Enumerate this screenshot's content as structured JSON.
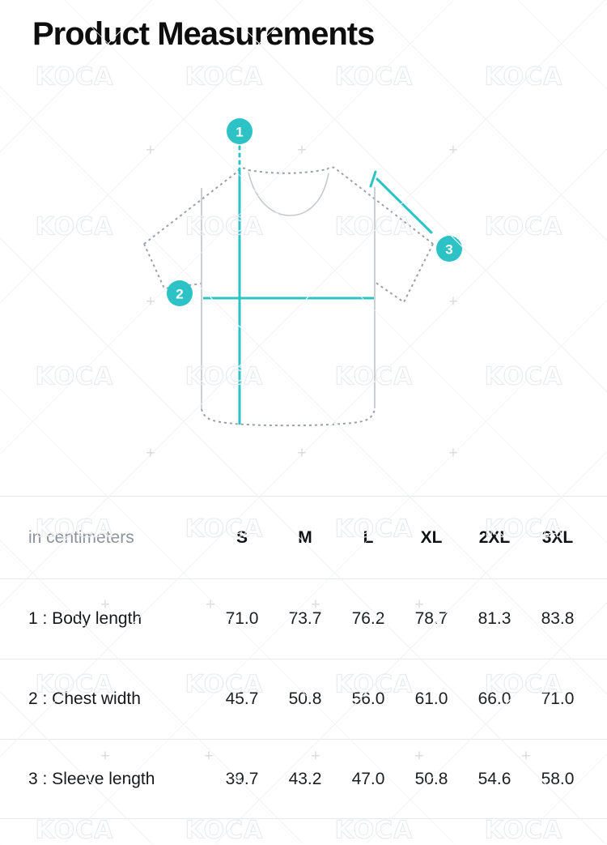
{
  "title": "Product Measurements",
  "watermark": {
    "text": "KOCA",
    "plus_glyph": "+"
  },
  "diagram": {
    "accent_color": "#2dc3c6",
    "outline_color": "#9aa0a7",
    "markers": [
      {
        "label": "1",
        "measures": "Body length"
      },
      {
        "label": "2",
        "measures": "Chest width"
      },
      {
        "label": "3",
        "measures": "Sleeve length"
      }
    ]
  },
  "table": {
    "unit_label": "in centimeters",
    "columns": [
      "S",
      "M",
      "L",
      "XL",
      "2XL",
      "3XL"
    ],
    "rows": [
      {
        "label": "1 : Body length",
        "values": [
          "71.0",
          "73.7",
          "76.2",
          "78.7",
          "81.3",
          "83.8"
        ]
      },
      {
        "label": "2 : Chest width",
        "values": [
          "45.7",
          "50.8",
          "56.0",
          "61.0",
          "66.0",
          "71.0"
        ]
      },
      {
        "label": "3 : Sleeve length",
        "values": [
          "39.7",
          "43.2",
          "47.0",
          "50.8",
          "54.6",
          "58.0"
        ]
      }
    ]
  },
  "chart_data": {
    "type": "table",
    "title": "Product Measurements",
    "unit": "centimeters",
    "categories": [
      "S",
      "M",
      "L",
      "XL",
      "2XL",
      "3XL"
    ],
    "series": [
      {
        "name": "Body length",
        "values": [
          71.0,
          73.7,
          76.2,
          78.7,
          81.3,
          83.8
        ]
      },
      {
        "name": "Chest width",
        "values": [
          45.7,
          50.8,
          56.0,
          61.0,
          66.0,
          71.0
        ]
      },
      {
        "name": "Sleeve length",
        "values": [
          39.7,
          43.2,
          47.0,
          50.8,
          54.6,
          58.0
        ]
      }
    ]
  }
}
